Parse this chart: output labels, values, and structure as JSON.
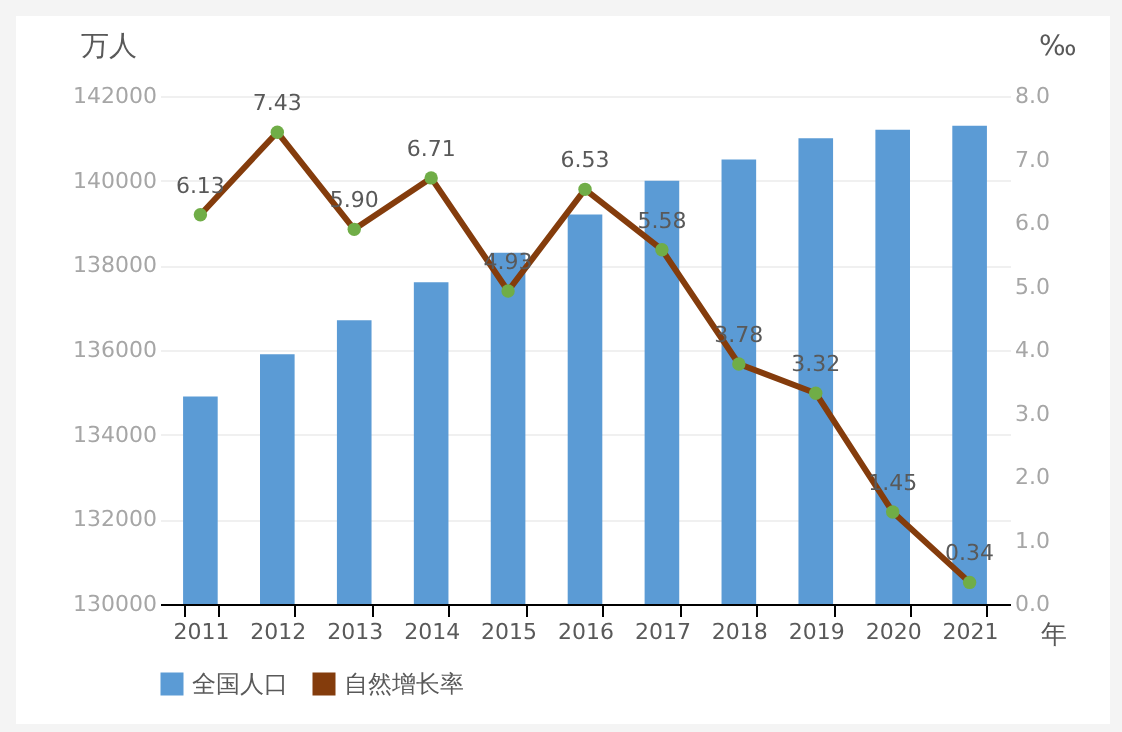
{
  "chart_data": {
    "type": "bar",
    "categories": [
      "2011",
      "2012",
      "2013",
      "2014",
      "2015",
      "2016",
      "2017",
      "2018",
      "2019",
      "2020",
      "2021"
    ],
    "xlabel": "年",
    "ylabel": "万人",
    "y2label": "‰",
    "series": [
      {
        "name": "全国人口",
        "color": "#5b9bd5",
        "values": [
          134900,
          135900,
          136700,
          137600,
          138300,
          139200,
          140000,
          140500,
          141000,
          141200,
          141300
        ]
      },
      {
        "name": "自然增长率",
        "type": "line",
        "axis": "y2",
        "color": "#843c0c",
        "marker": "circle",
        "value_labels": [
          "6.13",
          "7.43",
          "5.90",
          "6.71",
          "4.93",
          "6.53",
          "5.58",
          "3.78",
          "3.32",
          "1.45",
          "0.34"
        ],
        "values": [
          6.13,
          7.43,
          5.9,
          6.71,
          4.93,
          6.53,
          5.58,
          3.78,
          3.32,
          1.45,
          0.34
        ]
      }
    ],
    "ylim": [
      130000,
      142000
    ],
    "yticks": [
      130000,
      132000,
      134000,
      136000,
      138000,
      140000,
      142000
    ],
    "y2lim": [
      0,
      8
    ],
    "y2ticks": [
      {
        "value": 0,
        "label": "0.0"
      },
      {
        "value": 1,
        "label": "1.0"
      },
      {
        "value": 2,
        "label": "2.0"
      },
      {
        "value": 3,
        "label": "3.0"
      },
      {
        "value": 4,
        "label": "4.0"
      },
      {
        "value": 5,
        "label": "5.0"
      },
      {
        "value": 6,
        "label": "6.0"
      },
      {
        "value": 7,
        "label": "7.0"
      },
      {
        "value": 8,
        "label": "8.0"
      }
    ],
    "grid": "y",
    "legend": "bottom"
  }
}
